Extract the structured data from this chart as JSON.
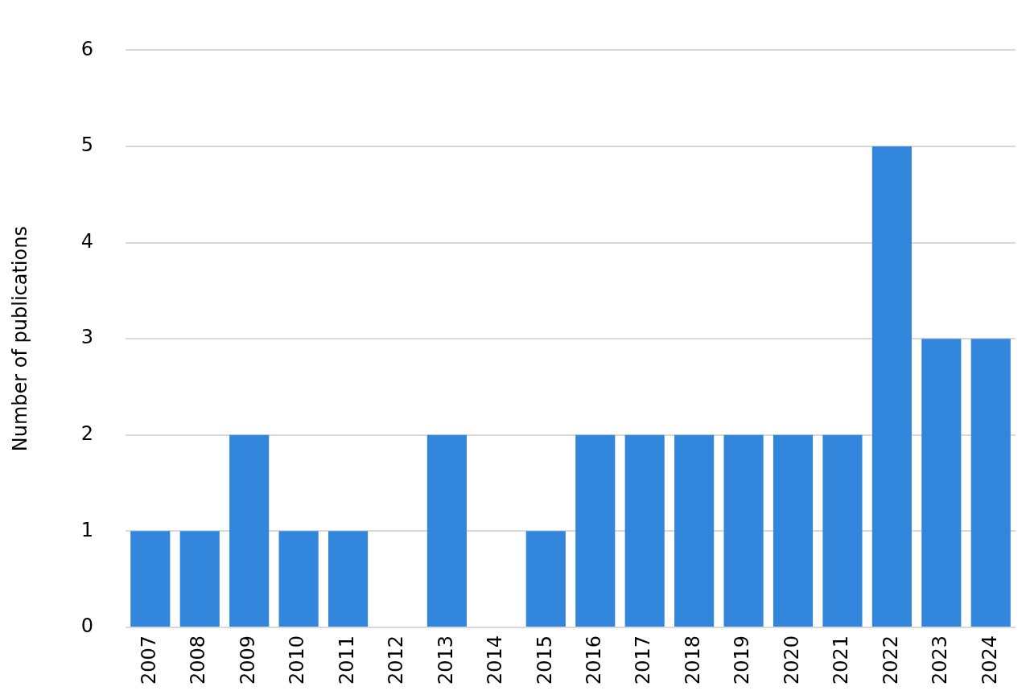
{
  "chart_data": {
    "type": "bar",
    "ylabel": "Number of publications",
    "categories": [
      "2007",
      "2008",
      "2009",
      "2010",
      "2011",
      "2012",
      "2013",
      "2014",
      "2015",
      "2016",
      "2017",
      "2018",
      "2019",
      "2020",
      "2021",
      "2022",
      "2023",
      "2024"
    ],
    "values": [
      1,
      1,
      2,
      1,
      1,
      0,
      2,
      0,
      1,
      2,
      2,
      2,
      2,
      2,
      2,
      5,
      3,
      3
    ],
    "color": "#3287dd",
    "ylim": [
      0,
      6
    ],
    "yticks": [
      0,
      1,
      2,
      3,
      4,
      5,
      6
    ],
    "grid": "y",
    "legend": false
  }
}
